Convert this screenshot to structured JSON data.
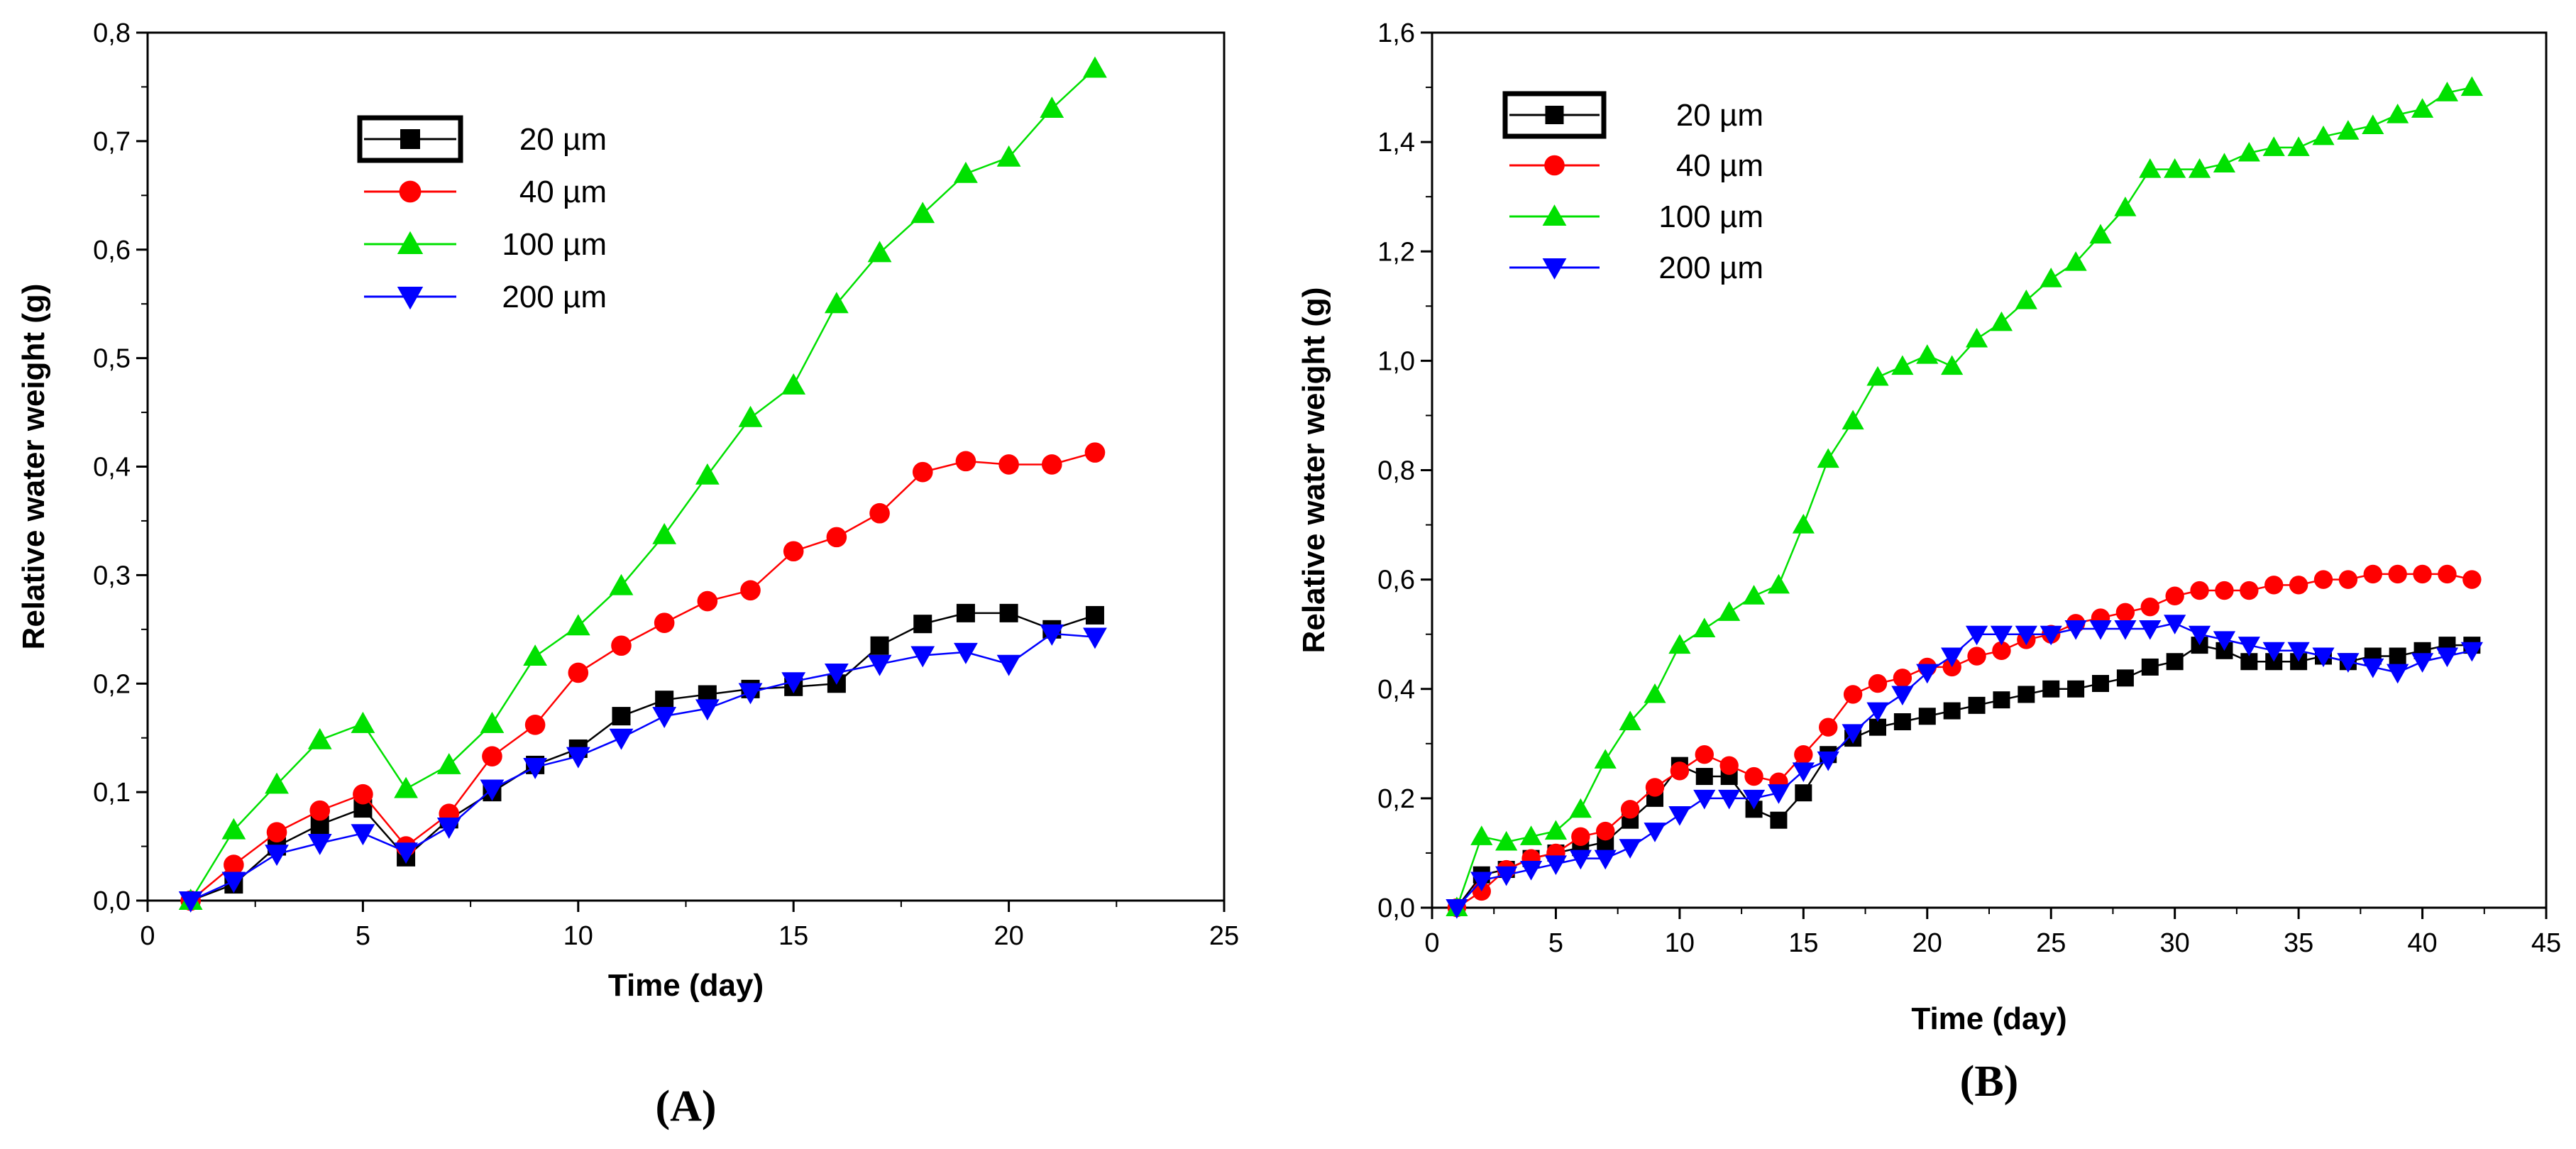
{
  "chart_data": [
    {
      "type": "line",
      "panel_label": "(A)",
      "xlabel": "Time (day)",
      "ylabel": "Relative water weight (g)",
      "xlim": [
        0,
        25
      ],
      "ylim": [
        0,
        0.8
      ],
      "xticks": [
        "0",
        "5",
        "10",
        "15",
        "20",
        "25"
      ],
      "yticks": [
        "0,0",
        "0,1",
        "0,2",
        "0,3",
        "0,4",
        "0,5",
        "0,6",
        "0,7",
        "0,8"
      ],
      "legend_position": "top-left",
      "x": [
        1,
        2,
        3,
        4,
        5,
        6,
        7,
        8,
        9,
        10,
        11,
        12,
        13,
        14,
        15,
        16,
        17,
        18,
        19,
        20,
        21,
        22
      ],
      "series": [
        {
          "name": "20 µm",
          "color": "#000000",
          "marker": "square",
          "values": [
            0,
            0.015,
            0.05,
            0.07,
            0.085,
            0.04,
            0.075,
            0.1,
            0.125,
            0.14,
            0.17,
            0.185,
            0.19,
            0.195,
            0.197,
            0.2,
            0.235,
            0.255,
            0.265,
            0.265,
            0.25,
            0.263
          ]
        },
        {
          "name": "40 µm",
          "color": "#ff0000",
          "marker": "circle",
          "values": [
            0,
            0.033,
            0.063,
            0.083,
            0.098,
            0.05,
            0.08,
            0.133,
            0.162,
            0.21,
            0.235,
            0.256,
            0.276,
            0.286,
            0.322,
            0.335,
            0.357,
            0.395,
            0.405,
            0.402,
            0.402,
            0.413
          ]
        },
        {
          "name": "100 µm",
          "color": "#00e000",
          "marker": "triangle-up",
          "values": [
            0,
            0.065,
            0.107,
            0.148,
            0.163,
            0.103,
            0.125,
            0.163,
            0.225,
            0.253,
            0.29,
            0.337,
            0.392,
            0.445,
            0.475,
            0.55,
            0.597,
            0.633,
            0.67,
            0.685,
            0.73,
            0.767
          ]
        },
        {
          "name": "200 µm",
          "color": "#0000ff",
          "marker": "triangle-down",
          "values": [
            0,
            0.018,
            0.043,
            0.053,
            0.062,
            0.045,
            0.068,
            0.103,
            0.123,
            0.133,
            0.15,
            0.17,
            0.177,
            0.192,
            0.202,
            0.21,
            0.218,
            0.226,
            0.229,
            0.218,
            0.246,
            0.243
          ]
        }
      ]
    },
    {
      "type": "line",
      "panel_label": "(B)",
      "xlabel": "Time (day)",
      "ylabel": "Relative water weight (g)",
      "xlim": [
        0,
        45
      ],
      "ylim": [
        0,
        1.6
      ],
      "xticks": [
        "0",
        "5",
        "10",
        "15",
        "20",
        "25",
        "30",
        "35",
        "40",
        "45"
      ],
      "yticks": [
        "0,0",
        "0,2",
        "0,4",
        "0,6",
        "0,8",
        "1,0",
        "1,2",
        "1,4",
        "1,6"
      ],
      "legend_position": "top-left",
      "x": [
        1,
        2,
        3,
        4,
        5,
        6,
        7,
        8,
        9,
        10,
        11,
        12,
        13,
        14,
        15,
        16,
        17,
        18,
        19,
        20,
        21,
        22,
        23,
        24,
        25,
        26,
        27,
        28,
        29,
        30,
        31,
        32,
        33,
        34,
        35,
        36,
        37,
        38,
        39,
        40,
        41,
        42
      ],
      "series": [
        {
          "name": "20 µm",
          "color": "#000000",
          "marker": "square",
          "values": [
            0,
            0.06,
            0.07,
            0.09,
            0.1,
            0.11,
            0.12,
            0.16,
            0.2,
            0.26,
            0.24,
            0.24,
            0.18,
            0.16,
            0.21,
            0.28,
            0.31,
            0.33,
            0.34,
            0.35,
            0.36,
            0.37,
            0.38,
            0.39,
            0.4,
            0.4,
            0.41,
            0.42,
            0.44,
            0.45,
            0.48,
            0.47,
            0.45,
            0.45,
            0.45,
            0.46,
            0.45,
            0.46,
            0.46,
            0.47,
            0.48,
            0.48
          ]
        },
        {
          "name": "40 µm",
          "color": "#ff0000",
          "marker": "circle",
          "values": [
            0,
            0.03,
            0.07,
            0.09,
            0.1,
            0.13,
            0.14,
            0.18,
            0.22,
            0.25,
            0.28,
            0.26,
            0.24,
            0.23,
            0.28,
            0.33,
            0.39,
            0.41,
            0.42,
            0.44,
            0.44,
            0.46,
            0.47,
            0.49,
            0.5,
            0.52,
            0.53,
            0.54,
            0.55,
            0.57,
            0.58,
            0.58,
            0.58,
            0.59,
            0.59,
            0.6,
            0.6,
            0.61,
            0.61,
            0.61,
            0.61,
            0.6
          ]
        },
        {
          "name": "100 µm",
          "color": "#00e000",
          "marker": "triangle-up",
          "values": [
            0,
            0.13,
            0.12,
            0.13,
            0.14,
            0.18,
            0.27,
            0.34,
            0.39,
            0.48,
            0.51,
            0.54,
            0.57,
            0.59,
            0.7,
            0.82,
            0.89,
            0.97,
            0.99,
            1.01,
            0.99,
            1.04,
            1.07,
            1.11,
            1.15,
            1.18,
            1.23,
            1.28,
            1.35,
            1.35,
            1.35,
            1.36,
            1.38,
            1.39,
            1.39,
            1.41,
            1.42,
            1.43,
            1.45,
            1.46,
            1.49,
            1.5
          ]
        },
        {
          "name": "200 µm",
          "color": "#0000ff",
          "marker": "triangle-down",
          "values": [
            0,
            0.05,
            0.06,
            0.07,
            0.08,
            0.09,
            0.09,
            0.11,
            0.14,
            0.17,
            0.2,
            0.2,
            0.2,
            0.21,
            0.25,
            0.27,
            0.32,
            0.36,
            0.39,
            0.43,
            0.46,
            0.5,
            0.5,
            0.5,
            0.5,
            0.51,
            0.51,
            0.51,
            0.51,
            0.52,
            0.5,
            0.49,
            0.48,
            0.47,
            0.47,
            0.46,
            0.45,
            0.44,
            0.43,
            0.45,
            0.46,
            0.47
          ]
        }
      ]
    }
  ]
}
